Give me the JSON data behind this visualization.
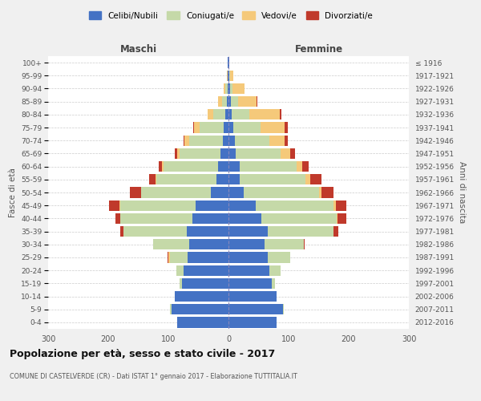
{
  "age_groups": [
    "0-4",
    "5-9",
    "10-14",
    "15-19",
    "20-24",
    "25-29",
    "30-34",
    "35-39",
    "40-44",
    "45-49",
    "50-54",
    "55-59",
    "60-64",
    "65-69",
    "70-74",
    "75-79",
    "80-84",
    "85-89",
    "90-94",
    "95-99",
    "100+"
  ],
  "birth_years": [
    "2012-2016",
    "2007-2011",
    "2002-2006",
    "1997-2001",
    "1992-1996",
    "1987-1991",
    "1982-1986",
    "1977-1981",
    "1972-1976",
    "1967-1971",
    "1962-1966",
    "1957-1961",
    "1952-1956",
    "1947-1951",
    "1942-1946",
    "1937-1941",
    "1932-1936",
    "1927-1931",
    "1922-1926",
    "1917-1921",
    "≤ 1916"
  ],
  "maschi": {
    "celibi": [
      85,
      95,
      90,
      78,
      75,
      68,
      65,
      70,
      60,
      55,
      30,
      20,
      18,
      13,
      10,
      8,
      5,
      3,
      2,
      1,
      1
    ],
    "coniugati": [
      0,
      2,
      0,
      4,
      12,
      30,
      60,
      105,
      120,
      125,
      115,
      100,
      90,
      68,
      55,
      40,
      20,
      8,
      3,
      1,
      0
    ],
    "vedovi": [
      0,
      0,
      0,
      0,
      0,
      2,
      0,
      0,
      0,
      1,
      1,
      2,
      3,
      5,
      8,
      10,
      10,
      6,
      3,
      1,
      0
    ],
    "divorziati": [
      0,
      0,
      0,
      0,
      0,
      2,
      0,
      5,
      8,
      18,
      18,
      10,
      5,
      3,
      2,
      1,
      0,
      0,
      0,
      0,
      0
    ]
  },
  "femmine": {
    "nubili": [
      80,
      90,
      80,
      72,
      68,
      65,
      60,
      65,
      55,
      45,
      25,
      18,
      18,
      12,
      10,
      8,
      5,
      4,
      2,
      1,
      1
    ],
    "coniugate": [
      0,
      2,
      0,
      5,
      18,
      38,
      65,
      110,
      125,
      130,
      125,
      110,
      95,
      75,
      58,
      45,
      30,
      12,
      5,
      2,
      0
    ],
    "vedove": [
      0,
      0,
      0,
      0,
      0,
      0,
      0,
      0,
      1,
      3,
      5,
      8,
      10,
      15,
      25,
      40,
      50,
      30,
      20,
      5,
      0
    ],
    "divorziate": [
      0,
      0,
      0,
      0,
      0,
      0,
      2,
      8,
      15,
      18,
      20,
      18,
      10,
      8,
      5,
      5,
      3,
      2,
      0,
      0,
      0
    ]
  },
  "colors": {
    "celibi": "#4472c4",
    "coniugati": "#c5d9a8",
    "vedovi": "#f5c97a",
    "divorziati": "#c0392b"
  },
  "title": "Popolazione per età, sesso e stato civile - 2017",
  "subtitle": "COMUNE DI CASTELVERDE (CR) - Dati ISTAT 1° gennaio 2017 - Elaborazione TUTTITALIA.IT",
  "xlabel_left": "Maschi",
  "xlabel_right": "Femmine",
  "ylabel_left": "Fasce di età",
  "ylabel_right": "Anni di nascita",
  "xlim": 300,
  "legend_labels": [
    "Celibi/Nubili",
    "Coniugati/e",
    "Vedovi/e",
    "Divorziati/e"
  ],
  "bg_color": "#f0f0f0",
  "plot_bg_color": "#ffffff",
  "grid_color": "#cccccc"
}
